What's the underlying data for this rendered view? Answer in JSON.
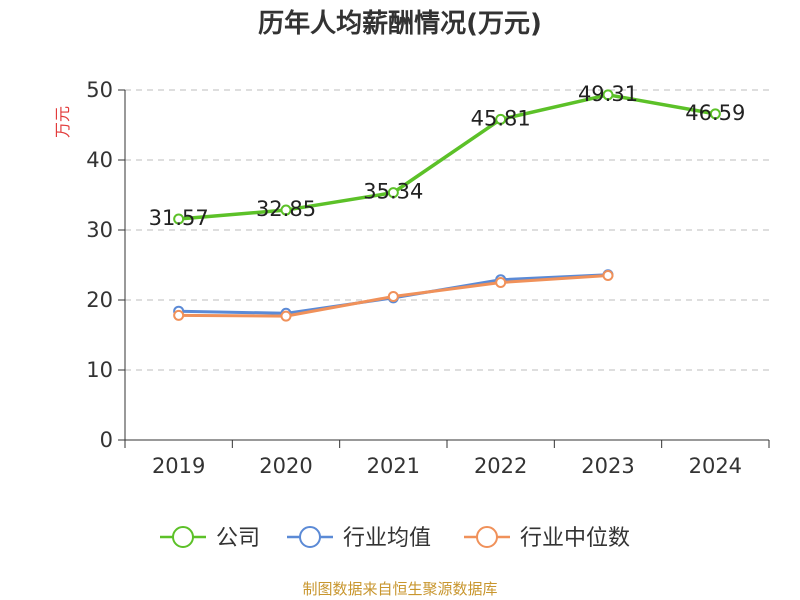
{
  "chart_data": {
    "type": "line",
    "title": "历年人均薪酬情况(万元)",
    "ylabel": "万元",
    "xlabel": "",
    "ylim": [
      0,
      50
    ],
    "yticks": [
      0,
      10,
      20,
      30,
      40,
      50
    ],
    "grid": "horizontal dashed",
    "legend_position": "bottom-center",
    "categories": [
      "2019",
      "2020",
      "2021",
      "2022",
      "2023",
      "2024"
    ],
    "series": [
      {
        "name": "公司",
        "color": "#5cc128",
        "values": [
          31.57,
          32.85,
          35.34,
          45.81,
          49.31,
          46.59
        ],
        "labels": [
          "31.57",
          "32.85",
          "35.34",
          "45.81",
          "49.31",
          "46.59"
        ],
        "show_labels": true
      },
      {
        "name": "行业均值",
        "color": "#5b8ad6",
        "values": [
          18.4,
          18.1,
          20.3,
          22.9,
          23.6,
          null
        ],
        "show_labels": false
      },
      {
        "name": "行业中位数",
        "color": "#f0915a",
        "values": [
          17.8,
          17.7,
          20.5,
          22.5,
          23.5,
          null
        ],
        "show_labels": false
      }
    ]
  },
  "source_text": "制图数据来自恒生聚源数据库"
}
